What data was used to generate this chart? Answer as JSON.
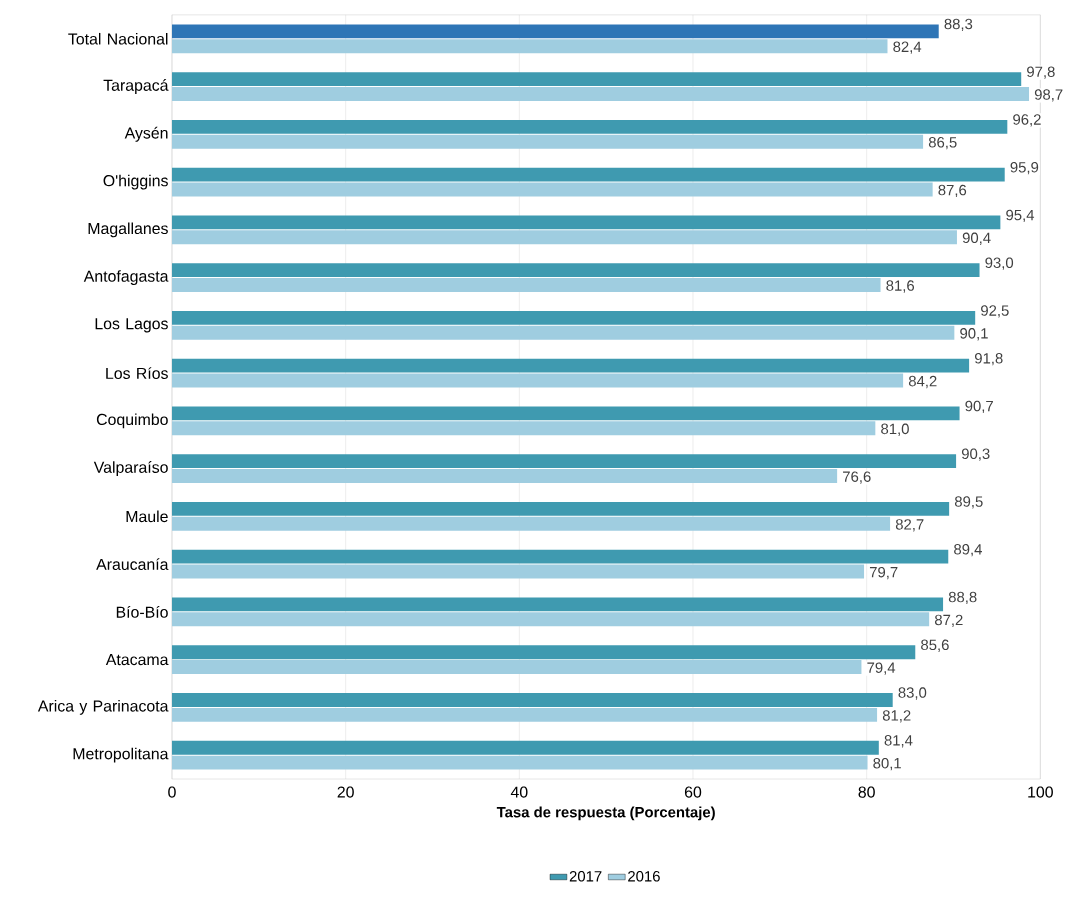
{
  "chart_data": {
    "type": "bar",
    "orientation": "horizontal",
    "categories": [
      "Total Nacional",
      "Tarapacá",
      "Aysén",
      "O'higgins",
      "Magallanes",
      "Antofagasta",
      "Los Lagos",
      "Los Ríos",
      "Coquimbo",
      "Valparaíso",
      "Maule",
      "Araucanía",
      "Bío-Bío",
      "Atacama",
      "Arica y Parinacota",
      "Metropolitana"
    ],
    "series": [
      {
        "name": "2017",
        "color": "#3f9ab0",
        "colors": [
          "#2e75b6",
          "#3f9ab0",
          "#3f9ab0",
          "#3f9ab0",
          "#3f9ab0",
          "#3f9ab0",
          "#3f9ab0",
          "#3f9ab0",
          "#3f9ab0",
          "#3f9ab0",
          "#3f9ab0",
          "#3f9ab0",
          "#3f9ab0",
          "#3f9ab0",
          "#3f9ab0",
          "#3f9ab0"
        ],
        "values": [
          88.3,
          97.8,
          96.2,
          95.9,
          95.4,
          93.0,
          92.5,
          91.8,
          90.7,
          90.3,
          89.5,
          89.4,
          88.8,
          85.6,
          83.0,
          81.4
        ],
        "value_labels": [
          "88,3",
          "97,8",
          "96,2",
          "95,9",
          "95,4",
          "93,0",
          "92,5",
          "91,8",
          "90,7",
          "90,3",
          "89,5",
          "89,4",
          "88,8",
          "85,6",
          "83,0",
          "81,4"
        ]
      },
      {
        "name": "2016",
        "color": "#9fcde0",
        "values": [
          82.4,
          98.7,
          86.5,
          87.6,
          90.4,
          81.6,
          90.1,
          84.2,
          81.0,
          76.6,
          82.7,
          79.7,
          87.2,
          79.4,
          81.2,
          80.1
        ],
        "value_labels": [
          "82,4",
          "98,7",
          "86,5",
          "87,6",
          "90,4",
          "81,6",
          "90,1",
          "84,2",
          "81,0",
          "76,6",
          "82,7",
          "79,7",
          "87,2",
          "79,4",
          "81,2",
          "80,1"
        ]
      }
    ],
    "xlabel": "Tasa de respuesta (Porcentaje)",
    "xlim": [
      0,
      100
    ],
    "xticks": [
      0,
      20,
      40,
      60,
      80,
      100
    ],
    "grid": "x",
    "legend": "bottom"
  }
}
